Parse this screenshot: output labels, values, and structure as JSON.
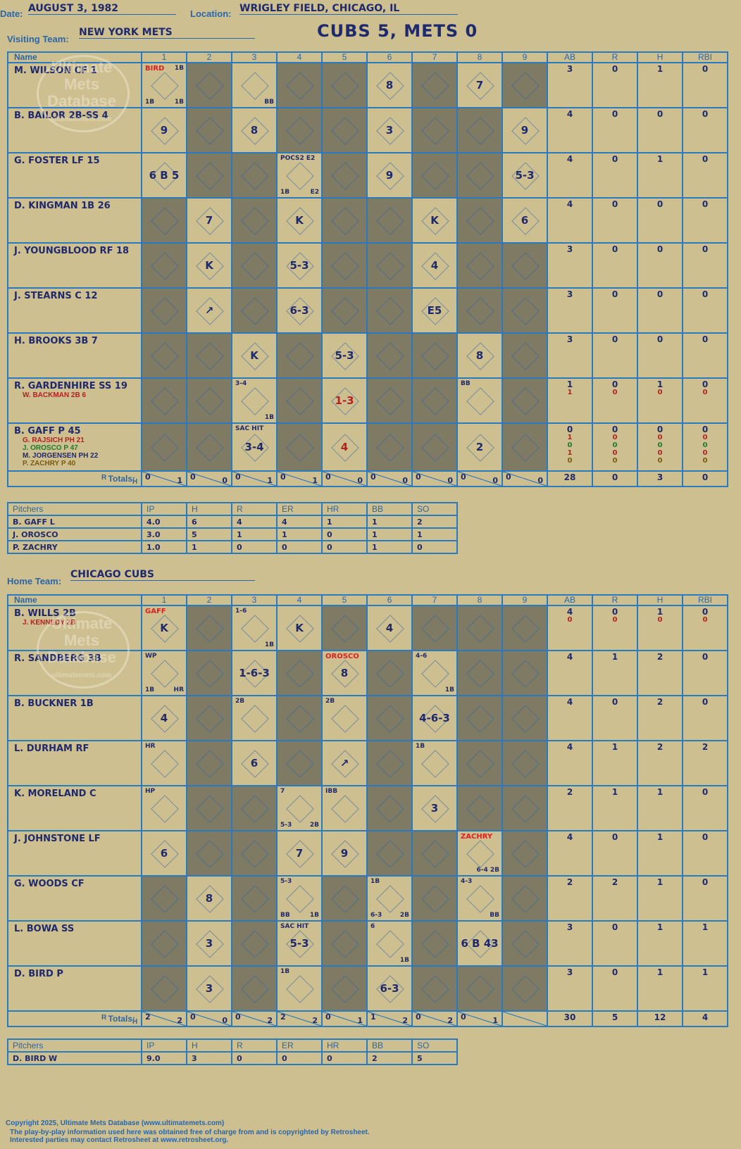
{
  "header": {
    "date_label": "Date:",
    "date": "AUGUST 3, 1982",
    "location_label": "Location:",
    "location": "WRIGLEY FIELD, CHICAGO, IL",
    "title": "CUBS 5, METS 0"
  },
  "visitors": {
    "label": "Visiting Team:",
    "team": "NEW YORK METS",
    "headers": {
      "name": "Name",
      "innings": [
        "1",
        "2",
        "3",
        "4",
        "5",
        "6",
        "7",
        "8",
        "9"
      ],
      "ab": "AB",
      "r": "R",
      "h": "H",
      "rbi": "RBI"
    },
    "rows": [
      {
        "name": "M. WILSON CF 1",
        "subs": [],
        "stats": [
          [
            "3",
            "0",
            "1",
            "0"
          ]
        ],
        "cells": [
          {
            "annot": [
              "BIRD",
              "1B",
              "1B",
              "1B"
            ]
          },
          {},
          {
            "tl": "",
            "b": "BB"
          },
          {},
          {},
          {
            "t": "8"
          },
          {},
          {
            "t": "7"
          },
          {}
        ]
      },
      {
        "name": "B. BAILOR 2B-SS 4",
        "subs": [],
        "stats": [
          [
            "4",
            "0",
            "0",
            "0"
          ]
        ],
        "cells": [
          {
            "t": "9"
          },
          {},
          {
            "t": "8"
          },
          {},
          {},
          {
            "t": "3"
          },
          {},
          {},
          {
            "t": "9"
          }
        ]
      },
      {
        "name": "G. FOSTER LF 15",
        "subs": [],
        "stats": [
          [
            "4",
            "0",
            "1",
            "0"
          ]
        ],
        "cells": [
          {
            "t": "6 B 5"
          },
          {},
          {},
          {
            "annot": [
              "POCS2 E2",
              "E2",
              "1B"
            ]
          },
          {},
          {
            "t": "9"
          },
          {},
          {},
          {
            "t": "5-3"
          }
        ]
      },
      {
        "name": "D. KINGMAN 1B 26",
        "subs": [],
        "stats": [
          [
            "4",
            "0",
            "0",
            "0"
          ]
        ],
        "cells": [
          {},
          {
            "t": "7"
          },
          {},
          {
            "t": "K"
          },
          {},
          {},
          {
            "t": "K"
          },
          {},
          {
            "t": "6"
          }
        ]
      },
      {
        "name": "J. YOUNGBLOOD RF 18",
        "subs": [],
        "stats": [
          [
            "3",
            "0",
            "0",
            "0"
          ]
        ],
        "cells": [
          {},
          {
            "t": "K"
          },
          {},
          {
            "t": "5-3"
          },
          {},
          {},
          {
            "t": "4"
          },
          {},
          {}
        ]
      },
      {
        "name": "J. STEARNS C 12",
        "subs": [],
        "stats": [
          [
            "3",
            "0",
            "0",
            "0"
          ]
        ],
        "cells": [
          {},
          {
            "t": "↗"
          },
          {},
          {
            "t": "6-3"
          },
          {},
          {},
          {
            "t": "E5"
          },
          {},
          {}
        ]
      },
      {
        "name": "H. BROOKS 3B 7",
        "subs": [],
        "stats": [
          [
            "3",
            "0",
            "0",
            "0"
          ]
        ],
        "cells": [
          {},
          {},
          {
            "t": "K"
          },
          {},
          {
            "t": "5-3"
          },
          {},
          {},
          {
            "t": "8"
          },
          {}
        ]
      },
      {
        "name": "R. GARDENHIRE SS 19",
        "subs": [
          "W. BACKMAN 2B 6"
        ],
        "stats": [
          [
            "1",
            "0",
            "1",
            "0"
          ],
          [
            "1",
            "0",
            "0",
            "0"
          ]
        ],
        "cells": [
          {},
          {},
          {
            "annot": [
              "3-4",
              "1B"
            ]
          },
          {},
          {
            "t": "1-3",
            "red": true
          },
          {},
          {},
          {
            "annot": [
              "BB"
            ]
          },
          {}
        ]
      },
      {
        "name": "B. GAFF P 45",
        "subs": [
          "G. RAJSICH PH 21",
          "J. OROSCO P 47",
          "M. JORGENSEN PH 22",
          "P. ZACHRY P 40"
        ],
        "stats": [
          [
            "0",
            "0",
            "0",
            "0"
          ],
          [
            "1",
            "0",
            "0",
            "0"
          ],
          [
            "0",
            "0",
            "0",
            "0"
          ],
          [
            "1",
            "0",
            "0",
            "0"
          ],
          [
            "0",
            "0",
            "0",
            "0"
          ]
        ],
        "cells": [
          {},
          {},
          {
            "t": "3-4",
            "annot": [
              "SAC HIT"
            ]
          },
          {},
          {
            "t": "4",
            "red": true
          },
          {},
          {},
          {
            "t": "2"
          },
          {}
        ]
      }
    ],
    "totals_label": "Totals:",
    "r_label": "R",
    "h_label": "H",
    "inning_totals": [
      [
        "0",
        "1"
      ],
      [
        "0",
        "0"
      ],
      [
        "0",
        "1"
      ],
      [
        "0",
        "1"
      ],
      [
        "0",
        "0"
      ],
      [
        "0",
        "0"
      ],
      [
        "0",
        "0"
      ],
      [
        "0",
        "0"
      ],
      [
        "0",
        "0"
      ]
    ],
    "game_totals": [
      "28",
      "0",
      "3",
      "0"
    ],
    "pitchers": {
      "headers": [
        "Pitchers",
        "IP",
        "H",
        "R",
        "ER",
        "HR",
        "BB",
        "SO"
      ],
      "rows": [
        [
          "B. GAFF  L",
          "4.0",
          "6",
          "4",
          "4",
          "1",
          "1",
          "2"
        ],
        [
          "J. OROSCO",
          "3.0",
          "5",
          "1",
          "1",
          "0",
          "1",
          "1"
        ],
        [
          "P. ZACHRY",
          "1.0",
          "1",
          "0",
          "0",
          "0",
          "1",
          "0"
        ]
      ]
    }
  },
  "home": {
    "label": "Home Team:",
    "team": "CHICAGO CUBS",
    "headers": {
      "name": "Name",
      "innings": [
        "1",
        "2",
        "3",
        "4",
        "5",
        "6",
        "7",
        "8",
        "9"
      ],
      "ab": "AB",
      "r": "R",
      "h": "H",
      "rbi": "RBI"
    },
    "rows": [
      {
        "name": "B. WILLS 2B",
        "subs": [
          "J. KENNEDY 2B"
        ],
        "stats": [
          [
            "4",
            "0",
            "1",
            "0"
          ],
          [
            "0",
            "0",
            "0",
            "0"
          ]
        ],
        "cells": [
          {
            "t": "K",
            "annot": [
              "GAFF"
            ]
          },
          {},
          {
            "annot": [
              "1-6",
              "1B"
            ]
          },
          {
            "t": "K"
          },
          {},
          {
            "t": "4"
          },
          {},
          {},
          {}
        ]
      },
      {
        "name": "R. SANDBERG 3B",
        "subs": [],
        "stats": [
          [
            "4",
            "1",
            "2",
            "0"
          ]
        ],
        "cells": [
          {
            "annot": [
              "WP",
              "HR",
              "1B"
            ]
          },
          {},
          {
            "t": "1-6-3"
          },
          {},
          {
            "t": "8",
            "annot": [
              "OROSCO"
            ]
          },
          {},
          {
            "annot": [
              "4-6",
              "1B"
            ]
          },
          {},
          {}
        ]
      },
      {
        "name": "B. BUCKNER 1B",
        "subs": [],
        "stats": [
          [
            "4",
            "0",
            "2",
            "0"
          ]
        ],
        "cells": [
          {
            "t": "4"
          },
          {},
          {
            "annot": [
              "2B"
            ]
          },
          {},
          {
            "annot": [
              "2B"
            ]
          },
          {},
          {
            "t": "4-6-3"
          },
          {},
          {}
        ]
      },
      {
        "name": "L. DURHAM RF",
        "subs": [],
        "stats": [
          [
            "4",
            "1",
            "2",
            "2"
          ]
        ],
        "cells": [
          {
            "annot": [
              "HR"
            ]
          },
          {},
          {
            "t": "6"
          },
          {},
          {
            "t": "↗"
          },
          {},
          {
            "annot": [
              "1B"
            ]
          },
          {},
          {}
        ]
      },
      {
        "name": "K. MORELAND C",
        "subs": [],
        "stats": [
          [
            "2",
            "1",
            "1",
            "0"
          ]
        ],
        "cells": [
          {
            "annot": [
              "HP"
            ]
          },
          {},
          {},
          {
            "annot": [
              "7",
              "2B",
              "5-3"
            ]
          },
          {
            "annot": [
              "IBB"
            ]
          },
          {},
          {
            "t": "3"
          },
          {},
          {}
        ]
      },
      {
        "name": "J. JOHNSTONE LF",
        "subs": [],
        "stats": [
          [
            "4",
            "0",
            "1",
            "0"
          ]
        ],
        "cells": [
          {
            "t": "6"
          },
          {},
          {},
          {
            "t": "7"
          },
          {
            "t": "9"
          },
          {},
          {},
          {
            "annot": [
              "ZACHRY",
              "6-4 2B"
            ]
          },
          {}
        ]
      },
      {
        "name": "G. WOODS CF",
        "subs": [],
        "stats": [
          [
            "2",
            "2",
            "1",
            "0"
          ]
        ],
        "cells": [
          {},
          {
            "t": "8"
          },
          {},
          {
            "annot": [
              "5-3",
              "1B",
              "BB"
            ]
          },
          {},
          {
            "annot": [
              "1B",
              "2B",
              "6-3"
            ]
          },
          {},
          {
            "annot": [
              "4-3",
              "BB"
            ]
          },
          {}
        ]
      },
      {
        "name": "L. BOWA SS",
        "subs": [],
        "stats": [
          [
            "3",
            "0",
            "1",
            "1"
          ]
        ],
        "cells": [
          {},
          {
            "t": "3"
          },
          {},
          {
            "t": "5-3",
            "annot": [
              "SAC HIT"
            ]
          },
          {},
          {
            "annot": [
              "6",
              "1B"
            ]
          },
          {},
          {
            "t": "6 B 43"
          },
          {}
        ]
      },
      {
        "name": "D. BIRD P",
        "subs": [],
        "stats": [
          [
            "3",
            "0",
            "1",
            "1"
          ]
        ],
        "cells": [
          {},
          {
            "t": "3"
          },
          {},
          {
            "annot": [
              "1B"
            ]
          },
          {},
          {
            "t": "6-3"
          },
          {},
          {},
          {}
        ]
      }
    ],
    "totals_label": "Totals:",
    "r_label": "R",
    "h_label": "H",
    "inning_totals": [
      [
        "2",
        "2"
      ],
      [
        "0",
        "0"
      ],
      [
        "0",
        "2"
      ],
      [
        "2",
        "2"
      ],
      [
        "0",
        "1"
      ],
      [
        "1",
        "2"
      ],
      [
        "0",
        "2"
      ],
      [
        "0",
        "1"
      ],
      [
        "",
        ""
      ]
    ],
    "game_totals": [
      "30",
      "5",
      "12",
      "4"
    ],
    "pitchers": {
      "headers": [
        "Pitchers",
        "IP",
        "H",
        "R",
        "ER",
        "HR",
        "BB",
        "SO"
      ],
      "rows": [
        [
          "D. BIRD  W",
          "9.0",
          "3",
          "0",
          "0",
          "0",
          "2",
          "5"
        ]
      ]
    }
  },
  "logo": {
    "line1": "Ultimate",
    "line2": "Mets",
    "line3": "Database",
    "url": "ultimatemets.com"
  },
  "footer": {
    "line1": "Copyright 2025, Ultimate Mets Database (www.ultimatemets.com)",
    "line2": "The play-by-play information used here was obtained free of charge from and is copyrighted by Retrosheet.",
    "line3": "Interested parties may contact Retrosheet at www.retrosheet.org."
  },
  "colors": {
    "paper": "#cdbf8f",
    "grid": "#2a7ac0",
    "shade": "#7f7a64",
    "ink": "#1f2a6e",
    "red": "#b22222"
  }
}
